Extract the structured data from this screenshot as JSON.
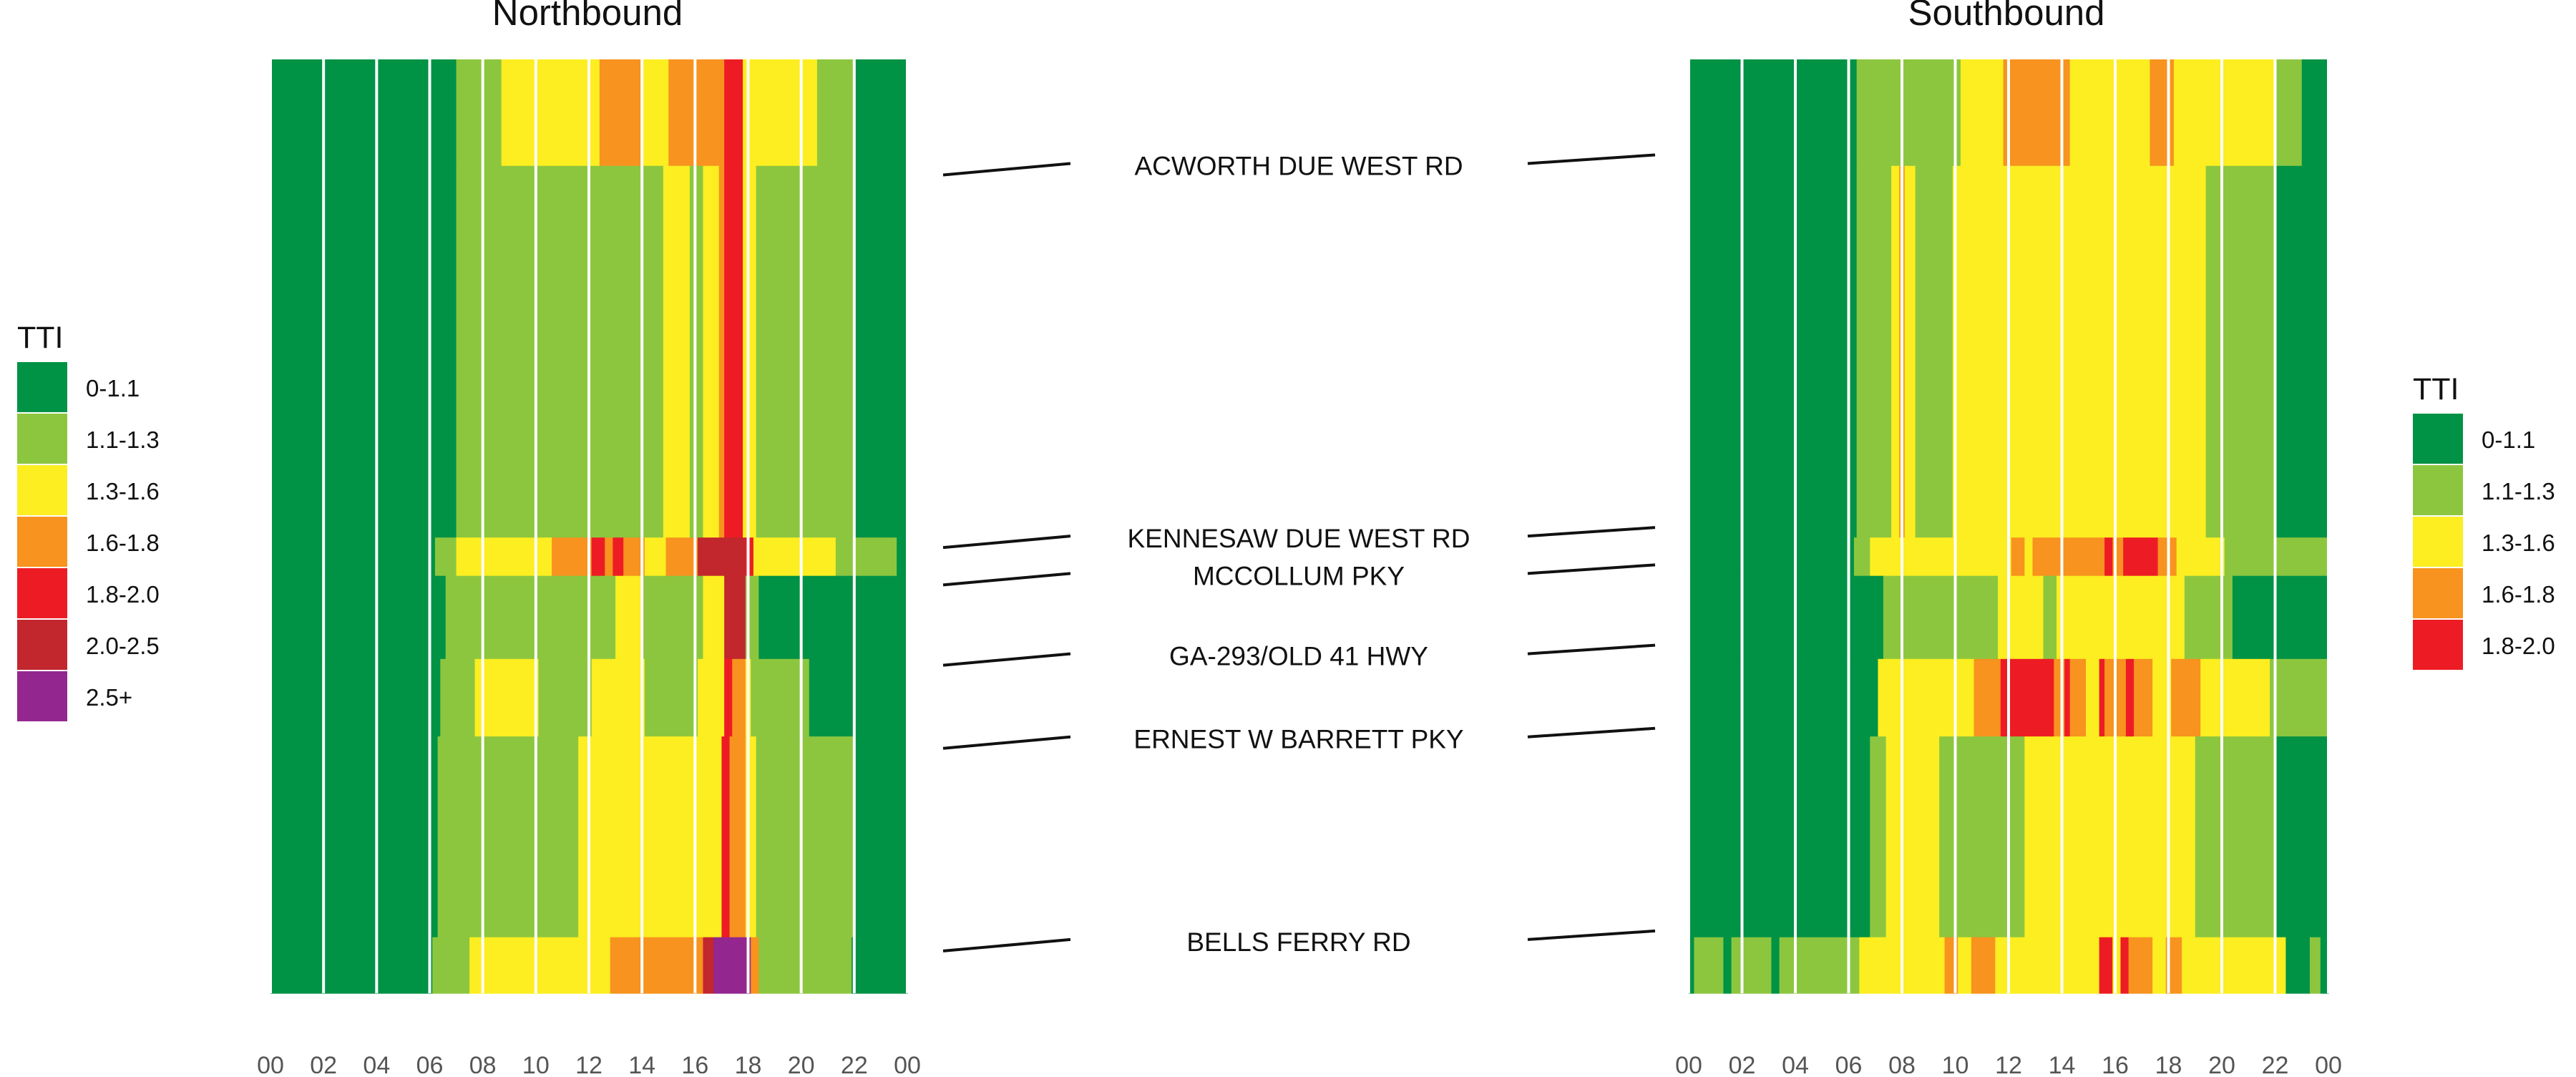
{
  "chart_data": [
    {
      "type": "heatmap",
      "title": "Northbound",
      "x_tick_labels": [
        "00",
        "02",
        "04",
        "06",
        "08",
        "10",
        "12",
        "14",
        "16",
        "18",
        "20",
        "22",
        "00"
      ],
      "x_range_hours": [
        0,
        24
      ],
      "legend": {
        "title": "TTI",
        "position": "left"
      },
      "color_scale": [
        {
          "label": "0-1.1",
          "color": "#009245"
        },
        {
          "label": "1.1-1.3",
          "color": "#8CC63F"
        },
        {
          "label": "1.3-1.6",
          "color": "#FCEE21"
        },
        {
          "label": "1.6-1.8",
          "color": "#F7931E"
        },
        {
          "label": "1.8-2.0",
          "color": "#ED1C24"
        },
        {
          "label": "2.0-2.5",
          "color": "#C1272D"
        },
        {
          "label": "2.5+",
          "color": "#93278F"
        }
      ],
      "road_segments": [
        {
          "name": "ACWORTH DUE WEST RD",
          "from": 0.0,
          "to": 0.114,
          "cells": [
            [
              0,
              7,
              0
            ],
            [
              7,
              8.7,
              1
            ],
            [
              8.7,
              10.4,
              2
            ],
            [
              10.4,
              12.4,
              2
            ],
            [
              12.4,
              14,
              3
            ],
            [
              14,
              15,
              2
            ],
            [
              15,
              16,
              3
            ],
            [
              16,
              17.1,
              3
            ],
            [
              17.1,
              17.8,
              4
            ],
            [
              17.8,
              18.8,
              2
            ],
            [
              18.8,
              20.6,
              2
            ],
            [
              20.6,
              22,
              1
            ],
            [
              22,
              24,
              0
            ]
          ]
        },
        {
          "name": "",
          "from": 0.114,
          "to": 0.512,
          "cells": [
            [
              0,
              7,
              0
            ],
            [
              7,
              14.8,
              1
            ],
            [
              14.8,
              15.8,
              2
            ],
            [
              15.8,
              16.3,
              1
            ],
            [
              16.3,
              16.9,
              2
            ],
            [
              16.9,
              17.1,
              3
            ],
            [
              17.1,
              17.8,
              4
            ],
            [
              17.8,
              18.3,
              2
            ],
            [
              18.3,
              22,
              1
            ],
            [
              22,
              24,
              0
            ]
          ]
        },
        {
          "name": "KENNESAW DUE WEST RD",
          "from": 0.512,
          "to": 0.553,
          "cells": [
            [
              0,
              6.2,
              0
            ],
            [
              6.2,
              7,
              1
            ],
            [
              7,
              10.6,
              2
            ],
            [
              10.6,
              12.1,
              3
            ],
            [
              12.1,
              12.6,
              4
            ],
            [
              12.6,
              12.9,
              3
            ],
            [
              12.9,
              13.3,
              4
            ],
            [
              13.3,
              14.1,
              3
            ],
            [
              14.1,
              14.9,
              2
            ],
            [
              14.9,
              16.1,
              3
            ],
            [
              16.1,
              17.9,
              5
            ],
            [
              17.9,
              18.2,
              4
            ],
            [
              18.2,
              21.3,
              2
            ],
            [
              21.3,
              23.6,
              1
            ],
            [
              23.6,
              24,
              0
            ]
          ]
        },
        {
          "name": "MCCOLLUM PKY",
          "from": 0.553,
          "to": 0.642,
          "cells": [
            [
              0,
              6.6,
              0
            ],
            [
              6.6,
              13,
              1
            ],
            [
              13,
              14,
              2
            ],
            [
              14,
              16.3,
              1
            ],
            [
              16.3,
              17.1,
              2
            ],
            [
              17.1,
              17.9,
              5
            ],
            [
              17.9,
              18.4,
              1
            ],
            [
              18.4,
              24,
              0
            ]
          ]
        },
        {
          "name": "GA-293/OLD 41 HWY",
          "from": 0.642,
          "to": 0.725,
          "cells": [
            [
              0,
              6.4,
              0
            ],
            [
              6.4,
              7.7,
              1
            ],
            [
              7.7,
              10.1,
              2
            ],
            [
              10.1,
              12.1,
              1
            ],
            [
              12.1,
              14.1,
              2
            ],
            [
              14.1,
              16.1,
              1
            ],
            [
              16.1,
              17.1,
              2
            ],
            [
              17.1,
              17.4,
              4
            ],
            [
              17.4,
              17.9,
              3
            ],
            [
              17.9,
              18.1,
              2
            ],
            [
              18.1,
              20.3,
              1
            ],
            [
              20.3,
              24,
              0
            ]
          ]
        },
        {
          "name": "ERNEST W BARRETT PKY",
          "from": 0.725,
          "to": 0.94,
          "cells": [
            [
              0,
              6.3,
              0
            ],
            [
              6.3,
              11.6,
              1
            ],
            [
              11.6,
              14.1,
              2
            ],
            [
              14.1,
              16.1,
              2
            ],
            [
              16.1,
              17,
              2
            ],
            [
              17,
              17.3,
              4
            ],
            [
              17.3,
              17.9,
              3
            ],
            [
              17.9,
              18.3,
              2
            ],
            [
              18.3,
              22,
              1
            ],
            [
              22,
              24,
              0
            ]
          ]
        },
        {
          "name": "BELLS FERRY RD",
          "from": 0.94,
          "to": 1.0,
          "cells": [
            [
              0,
              6.1,
              0
            ],
            [
              6.1,
              7.5,
              1
            ],
            [
              7.5,
              12.8,
              2
            ],
            [
              12.8,
              14.1,
              3
            ],
            [
              14.1,
              15.3,
              3
            ],
            [
              15.3,
              16.3,
              3
            ],
            [
              16.3,
              16.7,
              5
            ],
            [
              16.7,
              18.1,
              6
            ],
            [
              18.1,
              18.4,
              3
            ],
            [
              18.4,
              20.6,
              1
            ],
            [
              20.6,
              21.9,
              1
            ],
            [
              21.9,
              24,
              0
            ]
          ]
        }
      ]
    },
    {
      "type": "heatmap",
      "title": "Southbound",
      "x_tick_labels": [
        "00",
        "02",
        "04",
        "06",
        "08",
        "10",
        "12",
        "14",
        "16",
        "18",
        "20",
        "22",
        "00"
      ],
      "x_range_hours": [
        0,
        24
      ],
      "legend": {
        "title": "TTI",
        "position": "right"
      },
      "color_scale": [
        {
          "label": "0-1.1",
          "color": "#009245"
        },
        {
          "label": "1.1-1.3",
          "color": "#8CC63F"
        },
        {
          "label": "1.3-1.6",
          "color": "#FCEE21"
        },
        {
          "label": "1.6-1.8",
          "color": "#F7931E"
        },
        {
          "label": "1.8-2.0",
          "color": "#ED1C24"
        }
      ],
      "road_segments": [
        {
          "name": "ACWORTH DUE WEST RD",
          "from": 0.0,
          "to": 0.114,
          "cells": [
            [
              0,
              6.3,
              0
            ],
            [
              6.3,
              7.3,
              1
            ],
            [
              7.3,
              8.8,
              1
            ],
            [
              8.8,
              10.2,
              1
            ],
            [
              10.2,
              11.8,
              2
            ],
            [
              11.8,
              12,
              3
            ],
            [
              12,
              14.3,
              3
            ],
            [
              14.3,
              17.3,
              2
            ],
            [
              17.3,
              18.2,
              3
            ],
            [
              18.2,
              19.9,
              2
            ],
            [
              19.9,
              22,
              2
            ],
            [
              22,
              23,
              1
            ],
            [
              23,
              24,
              0
            ]
          ]
        },
        {
          "name": "",
          "from": 0.114,
          "to": 0.512,
          "cells": [
            [
              0,
              6.3,
              0
            ],
            [
              6.3,
              7.6,
              1
            ],
            [
              7.6,
              7.9,
              2
            ],
            [
              7.9,
              8.1,
              3
            ],
            [
              8.1,
              8.5,
              2
            ],
            [
              8.5,
              9.9,
              1
            ],
            [
              9.9,
              19.4,
              2
            ],
            [
              19.4,
              22,
              1
            ],
            [
              22,
              24,
              0
            ]
          ]
        },
        {
          "name": "KENNESAW DUE WEST RD",
          "from": 0.512,
          "to": 0.553,
          "cells": [
            [
              0,
              6.2,
              0
            ],
            [
              6.2,
              6.8,
              1
            ],
            [
              6.8,
              12.1,
              2
            ],
            [
              12.1,
              12.6,
              3
            ],
            [
              12.6,
              12.9,
              2
            ],
            [
              12.9,
              13.6,
              3
            ],
            [
              13.6,
              15.6,
              3
            ],
            [
              15.6,
              15.9,
              4
            ],
            [
              15.9,
              16.3,
              3
            ],
            [
              16.3,
              17.6,
              4
            ],
            [
              17.6,
              18.3,
              3
            ],
            [
              18.3,
              20.1,
              2
            ],
            [
              20.1,
              21.3,
              1
            ],
            [
              21.3,
              24,
              1
            ]
          ]
        },
        {
          "name": "MCCOLLUM PKY",
          "from": 0.553,
          "to": 0.642,
          "cells": [
            [
              0,
              6.3,
              0
            ],
            [
              6.3,
              7.3,
              0
            ],
            [
              7.3,
              11.6,
              1
            ],
            [
              11.6,
              13.3,
              2
            ],
            [
              13.3,
              13.8,
              1
            ],
            [
              13.8,
              18.6,
              2
            ],
            [
              18.6,
              20.4,
              1
            ],
            [
              20.4,
              24,
              0
            ]
          ]
        },
        {
          "name": "GA-293/OLD 41 HWY",
          "from": 0.642,
          "to": 0.725,
          "cells": [
            [
              0,
              6.3,
              0
            ],
            [
              6.3,
              7.1,
              0
            ],
            [
              7.1,
              10.7,
              2
            ],
            [
              10.7,
              11.7,
              3
            ],
            [
              11.7,
              13.7,
              4
            ],
            [
              13.7,
              14.1,
              3
            ],
            [
              14.1,
              14.3,
              4
            ],
            [
              14.3,
              14.9,
              3
            ],
            [
              14.9,
              15.4,
              2
            ],
            [
              15.4,
              15.6,
              4
            ],
            [
              15.6,
              16.4,
              3
            ],
            [
              16.4,
              16.7,
              4
            ],
            [
              16.7,
              17.4,
              3
            ],
            [
              17.4,
              18.1,
              2
            ],
            [
              18.1,
              19.2,
              3
            ],
            [
              19.2,
              21.8,
              2
            ],
            [
              21.8,
              24,
              1
            ]
          ]
        },
        {
          "name": "ERNEST W BARRETT PKY",
          "from": 0.725,
          "to": 0.94,
          "cells": [
            [
              0,
              6.3,
              0
            ],
            [
              6.3,
              6.8,
              0
            ],
            [
              6.8,
              7.4,
              1
            ],
            [
              7.4,
              9.4,
              2
            ],
            [
              9.4,
              12.6,
              1
            ],
            [
              12.6,
              19,
              2
            ],
            [
              19,
              22,
              1
            ],
            [
              22,
              24,
              0
            ]
          ]
        },
        {
          "name": "BELLS FERRY RD",
          "from": 0.94,
          "to": 1.0,
          "cells": [
            [
              0,
              0.2,
              0
            ],
            [
              0.2,
              1.3,
              1
            ],
            [
              1.3,
              1.6,
              0
            ],
            [
              1.6,
              3.1,
              1
            ],
            [
              3.1,
              3.4,
              0
            ],
            [
              3.4,
              6.4,
              1
            ],
            [
              6.4,
              9.6,
              2
            ],
            [
              9.6,
              10.1,
              3
            ],
            [
              10.1,
              10.6,
              2
            ],
            [
              10.6,
              11.5,
              3
            ],
            [
              11.5,
              15.4,
              2
            ],
            [
              15.4,
              15.9,
              4
            ],
            [
              15.9,
              16.2,
              2
            ],
            [
              16.2,
              16.5,
              4
            ],
            [
              16.5,
              17.4,
              3
            ],
            [
              17.4,
              17.9,
              2
            ],
            [
              17.9,
              18.5,
              3
            ],
            [
              18.5,
              22.4,
              2
            ],
            [
              22.4,
              23.3,
              0
            ],
            [
              23.3,
              23.7,
              1
            ],
            [
              23.7,
              24,
              0
            ]
          ]
        }
      ]
    }
  ],
  "center_labels": [
    {
      "text": "ACWORTH DUE WEST RD",
      "frac": 0.113
    },
    {
      "text": "KENNESAW DUE WEST RD",
      "frac": 0.512
    },
    {
      "text": "MCCOLLUM PKY",
      "frac": 0.552
    },
    {
      "text": "GA-293/OLD 41 HWY",
      "frac": 0.638
    },
    {
      "text": "ERNEST W BARRETT PKY",
      "frac": 0.727
    },
    {
      "text": "BELLS FERRY RD",
      "frac": 0.944
    }
  ]
}
